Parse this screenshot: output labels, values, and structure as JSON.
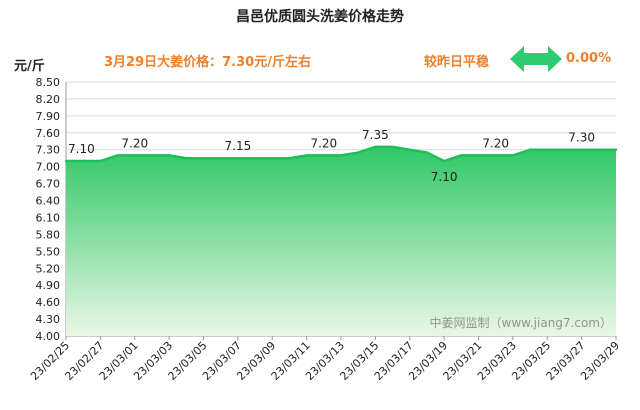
{
  "header": {
    "title": "昌邑优质圆头洗姜价格走势",
    "unit": "元/斤",
    "price_text": "3月29日大姜价格：7.30元/斤左右",
    "compare_text": "较昨日平稳",
    "change_pct": "0.00%",
    "arrow_icon": "double-arrow-icon"
  },
  "watermark": "中姜网监制（www.jiang7.com）",
  "colors": {
    "accent": "#f07f2a",
    "line": "#1fbe5a",
    "fill_top": "#2ec866",
    "fill_bottom": "#eaf7e6",
    "arrow": "#2ecc71"
  },
  "chart_data": {
    "type": "area",
    "title": "昌邑优质圆头洗姜价格走势",
    "ylabel": "元/斤",
    "xlabel": "",
    "ylim": [
      4.0,
      8.5
    ],
    "yticks": [
      "4.00",
      "4.30",
      "4.60",
      "4.90",
      "5.20",
      "5.50",
      "5.80",
      "6.10",
      "6.40",
      "6.70",
      "7.00",
      "7.30",
      "7.60",
      "7.90",
      "8.20",
      "8.50"
    ],
    "x_tick_labels": [
      "23/02/25",
      "23/02/27",
      "23/03/01",
      "23/03/03",
      "23/03/05",
      "23/03/07",
      "23/03/09",
      "23/03/11",
      "23/03/13",
      "23/03/15",
      "23/03/17",
      "23/03/19",
      "23/03/21",
      "23/03/23",
      "23/03/25",
      "23/03/27",
      "23/03/29"
    ],
    "x": [
      "23/02/25",
      "23/02/26",
      "23/02/27",
      "23/02/28",
      "23/03/01",
      "23/03/02",
      "23/03/03",
      "23/03/04",
      "23/03/05",
      "23/03/06",
      "23/03/07",
      "23/03/08",
      "23/03/09",
      "23/03/10",
      "23/03/11",
      "23/03/12",
      "23/03/13",
      "23/03/14",
      "23/03/15",
      "23/03/16",
      "23/03/17",
      "23/03/18",
      "23/03/19",
      "23/03/20",
      "23/03/21",
      "23/03/22",
      "23/03/23",
      "23/03/24",
      "23/03/25",
      "23/03/26",
      "23/03/27",
      "23/03/28",
      "23/03/29"
    ],
    "values": [
      7.1,
      7.1,
      7.1,
      7.2,
      7.2,
      7.2,
      7.2,
      7.15,
      7.15,
      7.15,
      7.15,
      7.15,
      7.15,
      7.15,
      7.2,
      7.2,
      7.2,
      7.25,
      7.35,
      7.35,
      7.3,
      7.25,
      7.1,
      7.2,
      7.2,
      7.2,
      7.2,
      7.3,
      7.3,
      7.3,
      7.3,
      7.3,
      7.3
    ],
    "data_labels": [
      {
        "date": "23/02/25",
        "text": "7.10"
      },
      {
        "date": "23/03/01",
        "text": "7.20"
      },
      {
        "date": "23/03/07",
        "text": "7.15"
      },
      {
        "date": "23/03/12",
        "text": "7.20"
      },
      {
        "date": "23/03/15",
        "text": "7.35"
      },
      {
        "date": "23/03/19",
        "text": "7.10"
      },
      {
        "date": "23/03/22",
        "text": "7.20"
      },
      {
        "date": "23/03/27",
        "text": "7.30"
      }
    ],
    "grid": true
  }
}
